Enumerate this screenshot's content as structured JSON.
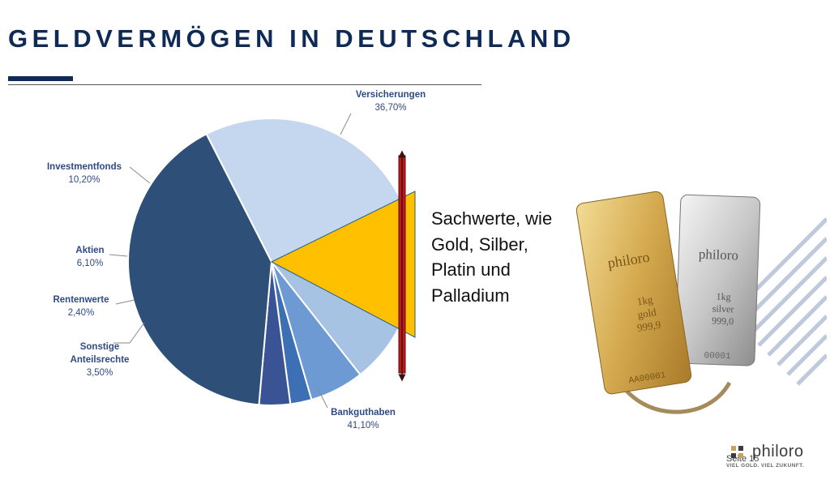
{
  "slide": {
    "title": "GELDVERMÖGEN IN DEUTSCHLAND",
    "page_label": "Seite 15"
  },
  "annotation": {
    "lines": [
      "Sachwerte, wie",
      "Gold, Silber,",
      "Platin und",
      "Palladium"
    ]
  },
  "bars": {
    "gold": {
      "brand": "philoro",
      "weight": "1kg",
      "metal": "gold",
      "purity": "999,9",
      "serial": "AA00001"
    },
    "silver": {
      "brand": "philoro",
      "weight": "1kg",
      "metal": "silver",
      "purity": "999,0",
      "serial": "00001"
    }
  },
  "logo": {
    "name": "philoro",
    "tagline": "VIEL GOLD. VIEL ZUKUNFT."
  },
  "chart_data": {
    "type": "pie",
    "title": "",
    "slices": [
      {
        "name": "Versicherungen",
        "value": 36.7,
        "label": "36,70%",
        "color": "#c5d7ee"
      },
      {
        "name": "Investmentfonds",
        "value": 10.2,
        "label": "10,20%",
        "color": "#a7c3e3"
      },
      {
        "name": "Aktien",
        "value": 6.1,
        "label": "6,10%",
        "color": "#6d9ad3"
      },
      {
        "name": "Rentenwerte",
        "value": 2.4,
        "label": "2,40%",
        "color": "#3d6fb4"
      },
      {
        "name": "Sonstige Anteilsrechte",
        "value": 3.5,
        "label": "3,50%",
        "color": "#3a5394"
      },
      {
        "name": "Bankguthaben",
        "value": 41.1,
        "label": "41,10%",
        "color": "#2e4f78"
      }
    ],
    "highlight": {
      "name": "Sachwerte",
      "color": "#ffc000"
    },
    "colors": {
      "label": "#2e4a86",
      "arrow": "#b71c1c",
      "title": "#0f2a55"
    }
  }
}
